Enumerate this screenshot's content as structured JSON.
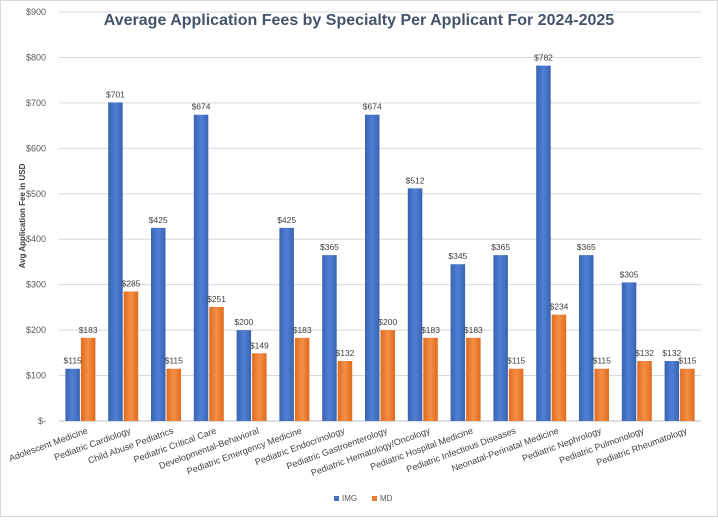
{
  "chart_data": {
    "type": "bar",
    "title": "Average Application Fees by Specialty Per Applicant For 2024-2025",
    "ylabel": "Avg Application Fee in USD",
    "xlabel": "",
    "ylim": [
      0,
      900
    ],
    "yticks": [
      "$-",
      "$100",
      "$200",
      "$300",
      "$400",
      "$500",
      "$600",
      "$700",
      "$800",
      "$900"
    ],
    "grid": true,
    "legend_position": "bottom",
    "categories": [
      "Adolescent Medicine",
      "Pediatric Cardiology",
      "Child Abuse Pediatrics",
      "Pediatric Critical Care",
      "Developmental-Behavioral",
      "Pediatric Emergency Medicine",
      "Pediatric Endocrinology",
      "Pediatric Gastroenterology",
      "Pediatric Hematology/Oncology",
      "Pediatric Hospital Medicine",
      "Pediatric Infectious Diseases",
      "Neonatal-Perinatal Medicine",
      "Pediatric Nephrology",
      "Pediatric Pulmonology",
      "Pediatric Rheumatology"
    ],
    "series": [
      {
        "name": "IMG",
        "color": "#4472c4",
        "values": [
          115,
          701,
          425,
          674,
          200,
          425,
          365,
          674,
          512,
          345,
          365,
          782,
          365,
          305,
          132
        ],
        "labels": [
          "$115",
          "$701",
          "$425",
          "$674",
          "$200",
          "$425",
          "$365",
          "$674",
          "$512",
          "$345",
          "$365",
          "$782",
          "$365",
          "$305",
          "$132"
        ]
      },
      {
        "name": "MD",
        "color": "#ed7d31",
        "values": [
          183,
          285,
          115,
          251,
          149,
          183,
          132,
          200,
          183,
          183,
          115,
          234,
          115,
          132,
          115
        ],
        "labels": [
          "$183",
          "$285",
          "$115",
          "$251",
          "$149",
          "$183",
          "$132",
          "$200",
          "$183",
          "$183",
          "$115",
          "$234",
          "$115",
          "$132",
          "$115"
        ]
      }
    ]
  }
}
